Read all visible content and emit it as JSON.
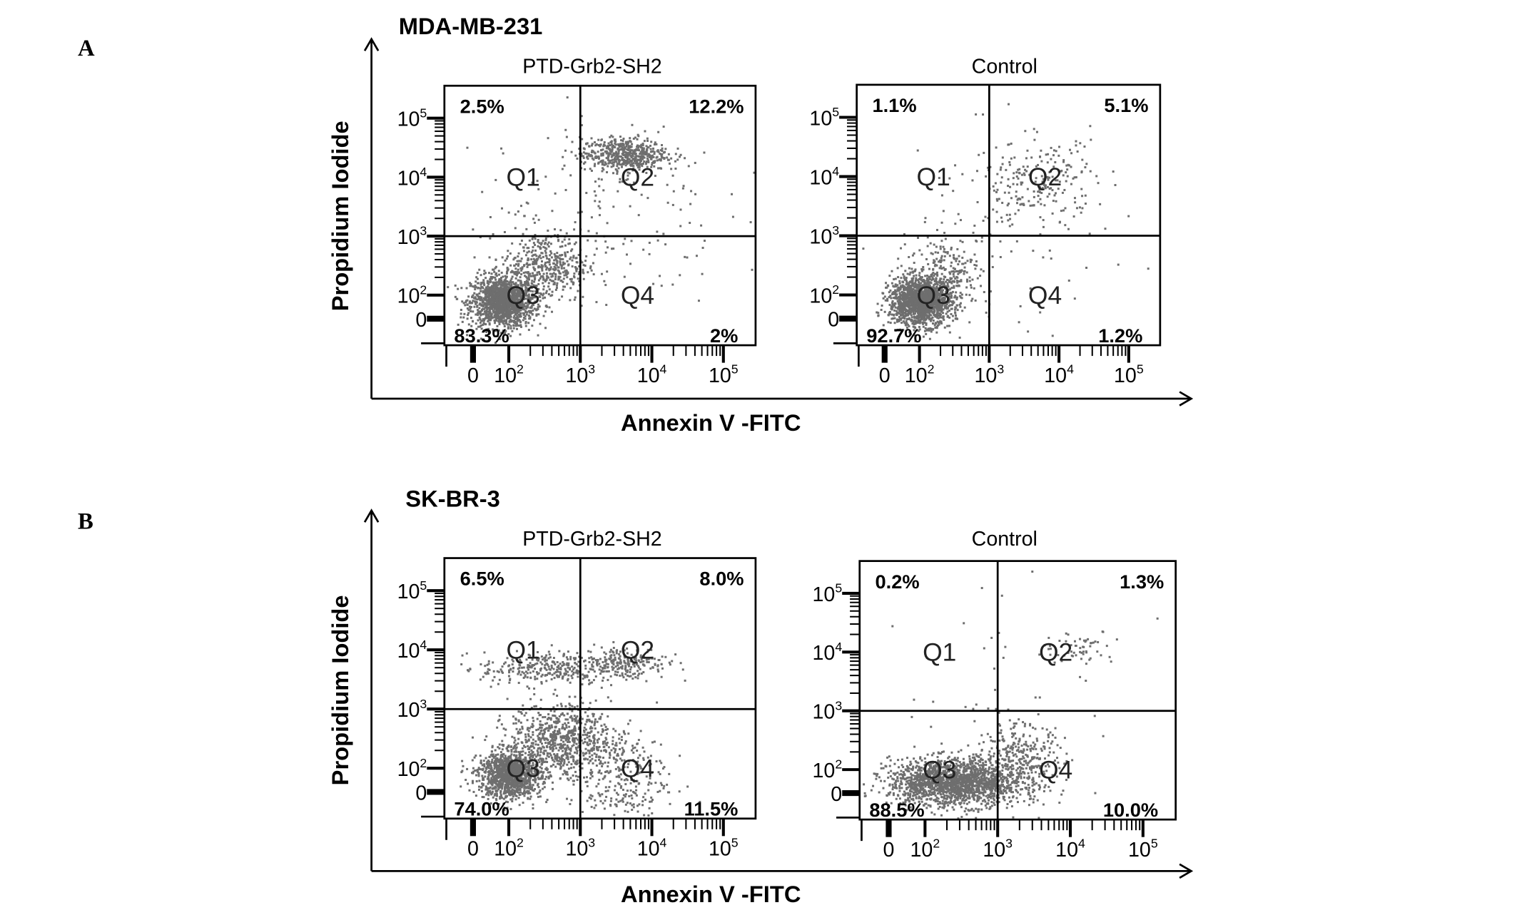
{
  "chart_data": {
    "type": "scatter",
    "xlabel": "Annexin V -FITC",
    "ylabel": "Propidium Iodide",
    "x_tick_labels": [
      "0",
      "10",
      "10",
      "10",
      "10"
    ],
    "x_tick_exponents": [
      "",
      "2",
      "3",
      "4",
      "5"
    ],
    "y_tick_labels": [
      "10",
      "10",
      "10",
      "10",
      "0"
    ],
    "y_tick_exponents": [
      "5",
      "4",
      "3",
      "2",
      ""
    ],
    "quadrant_labels": [
      "Q1",
      "Q2",
      "Q3",
      "Q4"
    ],
    "rows": [
      {
        "letter": "A",
        "cell_line": "MDA-MB-231",
        "panels": [
          {
            "title": "PTD-Grb2-SH2",
            "gate_x": 3,
            "gate_y": 3,
            "quadrant_percent": {
              "Q1": "2.5%",
              "Q2": "12.2%",
              "Q3": "83.3%",
              "Q4": "2%"
            },
            "populations": [
              {
                "x": 1.9,
                "y": 1.9,
                "sx": 0.22,
                "sy": 0.22,
                "n": 1500
              },
              {
                "x": 2.5,
                "y": 2.5,
                "sx": 0.3,
                "sy": 0.3,
                "n": 450
              },
              {
                "x": 3.6,
                "y": 4.4,
                "sx": 0.3,
                "sy": 0.14,
                "n": 550
              },
              {
                "x": 3.2,
                "y": 3.4,
                "sx": 0.9,
                "sy": 0.8,
                "n": 160
              }
            ]
          },
          {
            "title": "Control",
            "gate_x": 3,
            "gate_y": 3,
            "quadrant_percent": {
              "Q1": "1.1%",
              "Q2": "5.1%",
              "Q3": "92.7%",
              "Q4": "1.2%"
            },
            "populations": [
              {
                "x": 2.0,
                "y": 1.9,
                "sx": 0.22,
                "sy": 0.2,
                "n": 1600
              },
              {
                "x": 2.4,
                "y": 2.4,
                "sx": 0.3,
                "sy": 0.3,
                "n": 250
              },
              {
                "x": 3.7,
                "y": 3.9,
                "sx": 0.4,
                "sy": 0.35,
                "n": 200
              },
              {
                "x": 3.2,
                "y": 3.2,
                "sx": 0.9,
                "sy": 0.9,
                "n": 90
              }
            ]
          }
        ]
      },
      {
        "letter": "B",
        "cell_line": "SK-BR-3",
        "panels": [
          {
            "title": "PTD-Grb2-SH2",
            "gate_x": 3,
            "gate_y": 3,
            "quadrant_percent": {
              "Q1": "6.5%",
              "Q2": "8.0%",
              "Q3": "74.0%",
              "Q4": "11.5%"
            },
            "populations": [
              {
                "x": 2.0,
                "y": 1.9,
                "sx": 0.22,
                "sy": 0.2,
                "n": 1200
              },
              {
                "x": 2.7,
                "y": 2.5,
                "sx": 0.35,
                "sy": 0.3,
                "n": 700
              },
              {
                "x": 2.5,
                "y": 3.7,
                "sx": 0.45,
                "sy": 0.14,
                "n": 300
              },
              {
                "x": 3.6,
                "y": 3.8,
                "sx": 0.3,
                "sy": 0.14,
                "n": 220
              },
              {
                "x": 3.5,
                "y": 1.9,
                "sx": 0.35,
                "sy": 0.45,
                "n": 320
              }
            ]
          },
          {
            "title": "Control",
            "gate_x": 3,
            "gate_y": 3,
            "quadrant_percent": {
              "Q1": "0.2%",
              "Q2": "1.3%",
              "Q3": "88.5%",
              "Q4": "10.0%"
            },
            "populations": [
              {
                "x": 2.4,
                "y": 1.8,
                "sx": 0.45,
                "sy": 0.2,
                "n": 1800
              },
              {
                "x": 3.3,
                "y": 2.2,
                "sx": 0.3,
                "sy": 0.3,
                "n": 300
              },
              {
                "x": 4.1,
                "y": 4.1,
                "sx": 0.25,
                "sy": 0.15,
                "n": 60
              },
              {
                "x": 3.2,
                "y": 3.2,
                "sx": 0.8,
                "sy": 0.8,
                "n": 40
              }
            ]
          }
        ]
      }
    ]
  },
  "colors": {
    "dots": "#6e6e6e",
    "axes": "#000000"
  }
}
